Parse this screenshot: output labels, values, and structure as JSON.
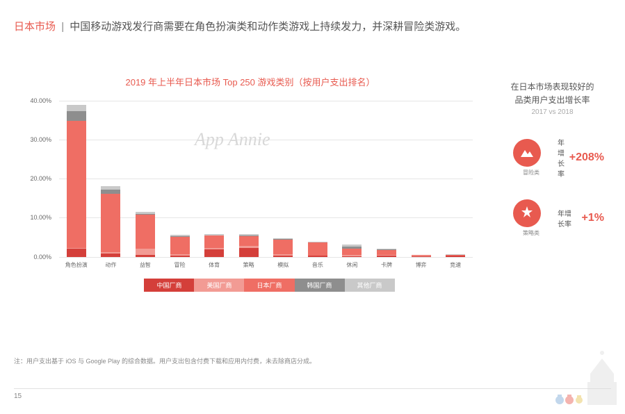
{
  "header": {
    "market": "日本市场",
    "divider": "|",
    "text": "中国移动游戏发行商需要在角色扮演类和动作类游戏上持续发力，并深耕冒险类游戏。"
  },
  "chart": {
    "type": "stacked-bar",
    "title": "2019 年上半年日本市场 Top 250 游戏类别（按用户支出排名）",
    "watermark": "App Annie",
    "ylim": [
      0,
      40
    ],
    "ytick_step": 10,
    "ytick_format_suffix": ".00%",
    "background_color": "#ffffff",
    "grid_color": "#e5e5e5",
    "categories": [
      "角色扮演",
      "动作",
      "益智",
      "冒险",
      "体育",
      "策略",
      "模拟",
      "音乐",
      "休闲",
      "卡牌",
      "博弈",
      "竞速"
    ],
    "series": [
      {
        "key": "china",
        "label": "中国厂商",
        "color": "#d43f3a"
      },
      {
        "key": "usa",
        "label": "美国厂商",
        "color": "#f29b94"
      },
      {
        "key": "japan",
        "label": "日本厂商",
        "color": "#ef6e64"
      },
      {
        "key": "korea",
        "label": "韩国厂商",
        "color": "#8e8e8e"
      },
      {
        "key": "other",
        "label": "其他厂商",
        "color": "#c9c9c9"
      }
    ],
    "data": [
      {
        "china": 2.0,
        "usa": 0.3,
        "japan": 32.5,
        "korea": 2.5,
        "other": 1.5
      },
      {
        "china": 0.8,
        "usa": 0.3,
        "japan": 15.0,
        "korea": 1.0,
        "other": 1.0
      },
      {
        "china": 0.4,
        "usa": 1.7,
        "japan": 8.6,
        "korea": 0.3,
        "other": 0.5
      },
      {
        "china": 0.2,
        "usa": 0.4,
        "japan": 4.4,
        "korea": 0.2,
        "other": 0.4
      },
      {
        "china": 1.8,
        "usa": 0.4,
        "japan": 3.2,
        "korea": 0.1,
        "other": 0.2
      },
      {
        "china": 2.2,
        "usa": 0.6,
        "japan": 2.4,
        "korea": 0.2,
        "other": 0.3
      },
      {
        "china": 0.3,
        "usa": 0.3,
        "japan": 3.8,
        "korea": 0.1,
        "other": 0.2
      },
      {
        "china": 0.2,
        "usa": 0.1,
        "japan": 3.3,
        "korea": 0.0,
        "other": 0.2
      },
      {
        "china": 0.1,
        "usa": 0.3,
        "japan": 1.7,
        "korea": 0.5,
        "other": 0.5
      },
      {
        "china": 0.3,
        "usa": 0.2,
        "japan": 1.2,
        "korea": 0.1,
        "other": 0.2
      },
      {
        "china": 0.1,
        "usa": 0.1,
        "japan": 0.2,
        "korea": 0.0,
        "other": 0.1
      },
      {
        "china": 0.2,
        "usa": 0.1,
        "japan": 0.2,
        "korea": 0.0,
        "other": 0.1
      }
    ]
  },
  "side": {
    "title_l1": "在日本市场表现较好的",
    "title_l2": "品类用户支出增长率",
    "subtitle": "2017 vs 2018",
    "items": [
      {
        "icon": "mountain",
        "icon_label": "冒险类",
        "label": "年增长率",
        "value": "+208%",
        "color": "#e85a4f"
      },
      {
        "icon": "strategy",
        "icon_label": "策略类",
        "label": "年增长率",
        "value": "+1%",
        "color": "#e85a4f"
      }
    ]
  },
  "footnote": "注：用户支出基于 iOS 与 Google Play 的综合数据。用户支出包含付费下载和应用内付费，未去除商店分成。",
  "page_number": "15"
}
